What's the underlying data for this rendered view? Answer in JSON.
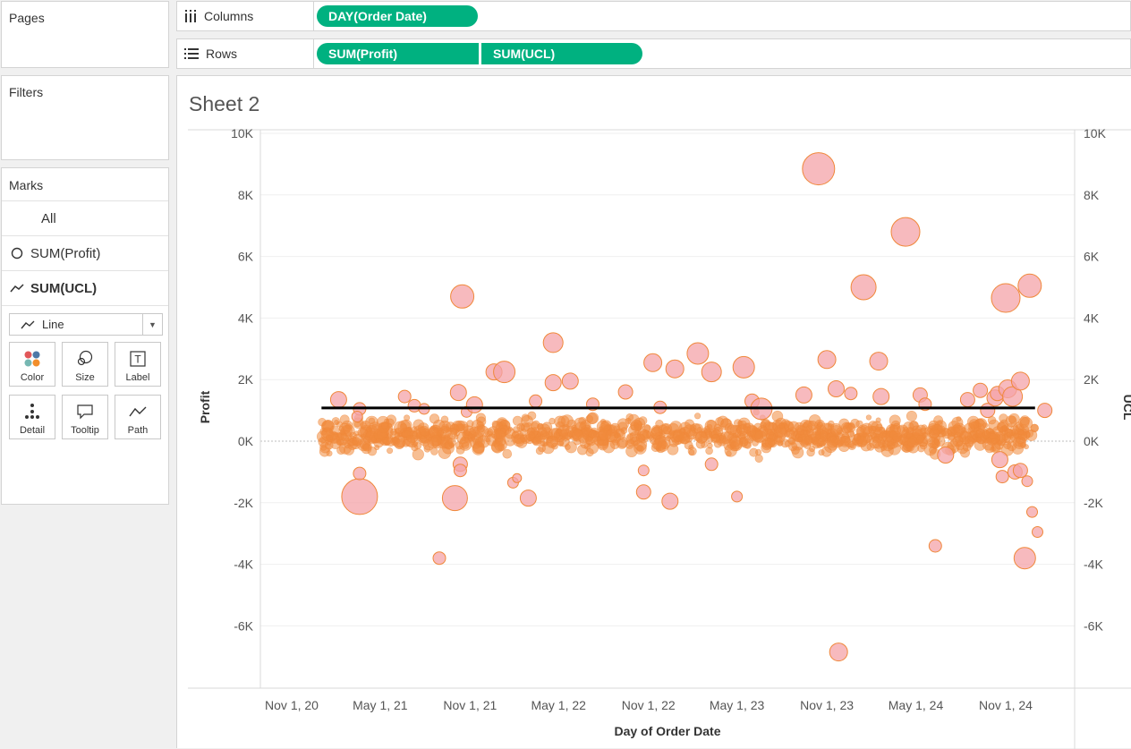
{
  "cards": {
    "pages_title": "Pages",
    "filters_title": "Filters",
    "marks_title": "Marks"
  },
  "marks": {
    "all_label": "All",
    "items": [
      {
        "label": "SUM(Profit)",
        "icon": "circle-mark-icon"
      },
      {
        "label": "SUM(UCL)",
        "icon": "line-mark-icon"
      }
    ],
    "mark_type": "Line",
    "buttons": [
      {
        "label": "Color",
        "icon": "color-icon"
      },
      {
        "label": "Size",
        "icon": "size-icon"
      },
      {
        "label": "Label",
        "icon": "label-icon"
      },
      {
        "label": "Detail",
        "icon": "detail-icon"
      },
      {
        "label": "Tooltip",
        "icon": "tooltip-icon"
      },
      {
        "label": "Path",
        "icon": "path-icon"
      }
    ]
  },
  "shelves": {
    "columns_label": "Columns",
    "rows_label": "Rows",
    "column_pills": [
      "DAY(Order Date)"
    ],
    "row_pills": [
      "SUM(Profit)",
      "SUM(UCL)"
    ]
  },
  "colors": {
    "pill": "#00b180",
    "point_fill": "#f4a3a8",
    "point_stroke": "#f0883a",
    "dense_fill": "#f08a3c",
    "ucl_line": "#000000"
  },
  "sheet": {
    "title": "Sheet 2"
  },
  "chart_data": {
    "type": "scatter",
    "xlabel": "Day of Order Date",
    "ylabel": "Profit",
    "ylabel_right": "UCL",
    "y_ticks": [
      "10K",
      "8K",
      "6K",
      "4K",
      "2K",
      "0K",
      "-2K",
      "-4K",
      "-6K"
    ],
    "x_ticks": [
      "Nov 1, 20",
      "May 1, 21",
      "Nov 1, 21",
      "May 1, 22",
      "Nov 1, 22",
      "May 1, 23",
      "Nov 1, 23",
      "May 1, 24",
      "Nov 1, 24"
    ],
    "ylim": [
      -8000,
      10000
    ],
    "xlim": [
      "2020-10-01",
      "2025-02-10"
    ],
    "ucl": {
      "value": 1080,
      "x_start": "2021-01-01",
      "x_end": "2024-12-31"
    },
    "grid": true,
    "notable_points": [
      {
        "x": "2021-02-05",
        "y": 1350,
        "size": 9
      },
      {
        "x": "2021-03-20",
        "y": 1050,
        "size": 7
      },
      {
        "x": "2021-03-15",
        "y": 800,
        "size": 6
      },
      {
        "x": "2021-03-20",
        "y": -1800,
        "size": 20
      },
      {
        "x": "2021-03-20",
        "y": -1050,
        "size": 7
      },
      {
        "x": "2021-06-20",
        "y": 1450,
        "size": 7
      },
      {
        "x": "2021-07-10",
        "y": 1150,
        "size": 7
      },
      {
        "x": "2021-07-30",
        "y": 1050,
        "size": 6
      },
      {
        "x": "2021-08-30",
        "y": -3800,
        "size": 7
      },
      {
        "x": "2021-10-08",
        "y": 1580,
        "size": 9
      },
      {
        "x": "2021-10-16",
        "y": 4700,
        "size": 13
      },
      {
        "x": "2021-10-01",
        "y": -1850,
        "size": 14
      },
      {
        "x": "2021-10-12",
        "y": -750,
        "size": 8
      },
      {
        "x": "2021-10-12",
        "y": -950,
        "size": 7
      },
      {
        "x": "2021-10-25",
        "y": 950,
        "size": 6
      },
      {
        "x": "2021-11-10",
        "y": 1180,
        "size": 9
      },
      {
        "x": "2021-12-20",
        "y": 2250,
        "size": 9
      },
      {
        "x": "2022-01-10",
        "y": 2250,
        "size": 12
      },
      {
        "x": "2022-01-28",
        "y": -1350,
        "size": 6
      },
      {
        "x": "2022-02-05",
        "y": -1200,
        "size": 5
      },
      {
        "x": "2022-02-28",
        "y": -1850,
        "size": 9
      },
      {
        "x": "2022-03-15",
        "y": 1300,
        "size": 7
      },
      {
        "x": "2022-04-20",
        "y": 3200,
        "size": 11
      },
      {
        "x": "2022-04-20",
        "y": 1900,
        "size": 9
      },
      {
        "x": "2022-05-25",
        "y": 1950,
        "size": 9
      },
      {
        "x": "2022-07-10",
        "y": 1200,
        "size": 7
      },
      {
        "x": "2022-09-15",
        "y": 1600,
        "size": 8
      },
      {
        "x": "2022-10-22",
        "y": -1650,
        "size": 8
      },
      {
        "x": "2022-10-22",
        "y": -950,
        "size": 6
      },
      {
        "x": "2022-11-10",
        "y": 2550,
        "size": 10
      },
      {
        "x": "2022-11-25",
        "y": 1100,
        "size": 7
      },
      {
        "x": "2022-12-25",
        "y": 2350,
        "size": 10
      },
      {
        "x": "2022-12-15",
        "y": -1950,
        "size": 9
      },
      {
        "x": "2023-02-10",
        "y": 2850,
        "size": 12
      },
      {
        "x": "2023-03-10",
        "y": 2250,
        "size": 11
      },
      {
        "x": "2023-03-10",
        "y": -750,
        "size": 7
      },
      {
        "x": "2023-05-15",
        "y": 2400,
        "size": 12
      },
      {
        "x": "2023-05-01",
        "y": -1800,
        "size": 6
      },
      {
        "x": "2023-06-01",
        "y": 1300,
        "size": 8
      },
      {
        "x": "2023-06-20",
        "y": 1050,
        "size": 12
      },
      {
        "x": "2023-09-15",
        "y": 1500,
        "size": 9
      },
      {
        "x": "2023-10-15",
        "y": 8850,
        "size": 18
      },
      {
        "x": "2023-11-01",
        "y": 2650,
        "size": 10
      },
      {
        "x": "2023-11-20",
        "y": 1700,
        "size": 9
      },
      {
        "x": "2023-12-20",
        "y": 1550,
        "size": 7
      },
      {
        "x": "2023-11-25",
        "y": -6850,
        "size": 10
      },
      {
        "x": "2024-01-15",
        "y": 5000,
        "size": 14
      },
      {
        "x": "2024-02-15",
        "y": 2600,
        "size": 10
      },
      {
        "x": "2024-02-20",
        "y": 1450,
        "size": 9
      },
      {
        "x": "2024-04-10",
        "y": 6800,
        "size": 16
      },
      {
        "x": "2024-05-10",
        "y": 1500,
        "size": 8
      },
      {
        "x": "2024-05-20",
        "y": 1200,
        "size": 7
      },
      {
        "x": "2024-06-10",
        "y": -3400,
        "size": 7
      },
      {
        "x": "2024-07-01",
        "y": -450,
        "size": 9
      },
      {
        "x": "2024-08-15",
        "y": 1350,
        "size": 8
      },
      {
        "x": "2024-09-10",
        "y": 1650,
        "size": 8
      },
      {
        "x": "2024-09-25",
        "y": 1000,
        "size": 8
      },
      {
        "x": "2024-10-10",
        "y": 1400,
        "size": 9
      },
      {
        "x": "2024-10-15",
        "y": 1550,
        "size": 8
      },
      {
        "x": "2024-10-20",
        "y": -600,
        "size": 9
      },
      {
        "x": "2024-10-25",
        "y": -1150,
        "size": 7
      },
      {
        "x": "2024-11-01",
        "y": 4650,
        "size": 16
      },
      {
        "x": "2024-11-05",
        "y": 1700,
        "size": 10
      },
      {
        "x": "2024-11-15",
        "y": 1450,
        "size": 11
      },
      {
        "x": "2024-11-20",
        "y": -1000,
        "size": 8
      },
      {
        "x": "2024-12-01",
        "y": 1950,
        "size": 10
      },
      {
        "x": "2024-12-01",
        "y": -950,
        "size": 8
      },
      {
        "x": "2024-12-10",
        "y": -3800,
        "size": 12
      },
      {
        "x": "2024-12-15",
        "y": -1300,
        "size": 6
      },
      {
        "x": "2024-12-20",
        "y": 5050,
        "size": 13
      },
      {
        "x": "2024-12-25",
        "y": -2300,
        "size": 6
      },
      {
        "x": "2025-01-05",
        "y": -2950,
        "size": 6
      },
      {
        "x": "2025-01-20",
        "y": 1000,
        "size": 8
      }
    ],
    "dense_band": {
      "x_start": "2021-01-01",
      "x_end": "2024-12-31",
      "y_center": 200,
      "y_spread": 500,
      "note_count": 1450
    }
  }
}
